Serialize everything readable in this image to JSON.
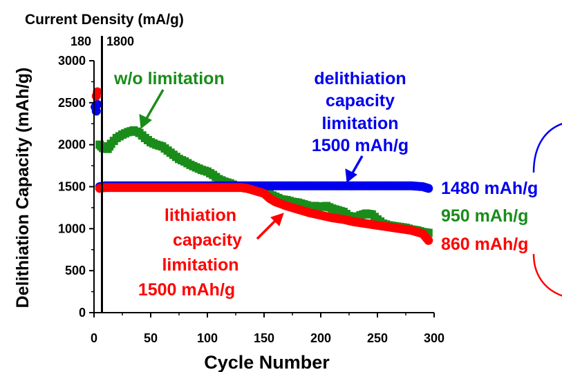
{
  "top_axis": {
    "title": "Current Density (mA/g)",
    "labels": [
      "180",
      "1800"
    ]
  },
  "annotations": {
    "wo_limitation": "w/o limitation",
    "delith_limit": [
      "delithiation",
      "capacity",
      "limitation",
      "1500 mAh/g"
    ],
    "lith_limit": [
      "lithiation",
      "capacity",
      "limitation",
      "1500 mAh/g"
    ],
    "end_values": [
      "1480 mAh/g",
      "950 mAh/g",
      "860 mAh/g"
    ]
  },
  "colors": {
    "green": "#1a8c1a",
    "blue": "#0000ee",
    "red": "#ff0000",
    "axis": "#000000"
  },
  "chart_data": {
    "type": "scatter",
    "xlabel": "Cycle Number",
    "ylabel": "Delithiation Capacity (mAh/g)",
    "xlim": [
      0,
      300
    ],
    "ylim": [
      0,
      3000
    ],
    "xticks": [
      0,
      50,
      100,
      150,
      200,
      250,
      300
    ],
    "yticks": [
      0,
      500,
      1000,
      1500,
      2000,
      2500,
      3000
    ],
    "current_switch_cycle": 7,
    "series": [
      {
        "color": "green",
        "x": [
          5,
          8,
          12,
          15,
          20,
          25,
          30,
          35,
          40,
          45,
          50,
          55,
          60,
          65,
          70,
          75,
          80,
          85,
          90,
          95,
          100,
          105,
          110,
          115,
          120,
          125,
          130,
          135,
          140,
          145,
          150,
          155,
          160,
          165,
          170,
          175,
          180,
          185,
          190,
          195,
          200,
          205,
          210,
          215,
          220,
          225,
          230,
          235,
          240,
          245,
          250,
          255,
          260,
          265,
          270,
          275,
          280,
          285,
          290,
          295
        ],
        "y": [
          2000,
          1960,
          1950,
          2010,
          2080,
          2120,
          2150,
          2170,
          2140,
          2080,
          2030,
          2000,
          1980,
          1930,
          1880,
          1830,
          1800,
          1760,
          1730,
          1700,
          1680,
          1640,
          1590,
          1560,
          1540,
          1510,
          1500,
          1480,
          1470,
          1450,
          1430,
          1410,
          1380,
          1350,
          1340,
          1320,
          1310,
          1290,
          1270,
          1270,
          1260,
          1270,
          1240,
          1220,
          1200,
          1150,
          1130,
          1160,
          1180,
          1170,
          1110,
          1060,
          1040,
          1030,
          1020,
          1010,
          990,
          980,
          960,
          950
        ]
      },
      {
        "color": "blue",
        "x": [
          1,
          2,
          3,
          5,
          10,
          20,
          30,
          40,
          50,
          60,
          70,
          80,
          90,
          100,
          110,
          120,
          130,
          140,
          150,
          160,
          170,
          180,
          190,
          200,
          210,
          220,
          230,
          240,
          250,
          260,
          270,
          280,
          290,
          295
        ],
        "y": [
          2450,
          2400,
          2480,
          1500,
          1510,
          1510,
          1510,
          1510,
          1510,
          1510,
          1510,
          1510,
          1510,
          1510,
          1510,
          1510,
          1510,
          1510,
          1510,
          1510,
          1510,
          1510,
          1510,
          1510,
          1510,
          1510,
          1510,
          1510,
          1510,
          1510,
          1510,
          1510,
          1500,
          1480
        ]
      },
      {
        "color": "red",
        "x": [
          2,
          3,
          5,
          10,
          20,
          30,
          40,
          50,
          60,
          70,
          80,
          90,
          100,
          110,
          120,
          130,
          135,
          140,
          150,
          155,
          160,
          170,
          180,
          190,
          200,
          210,
          220,
          230,
          240,
          250,
          260,
          270,
          280,
          290,
          295
        ],
        "y": [
          2580,
          2630,
          1480,
          1490,
          1490,
          1490,
          1490,
          1490,
          1490,
          1490,
          1490,
          1490,
          1490,
          1490,
          1490,
          1490,
          1480,
          1460,
          1420,
          1360,
          1320,
          1270,
          1230,
          1190,
          1160,
          1130,
          1110,
          1080,
          1060,
          1040,
          1020,
          1000,
          980,
          940,
          860
        ]
      }
    ]
  }
}
